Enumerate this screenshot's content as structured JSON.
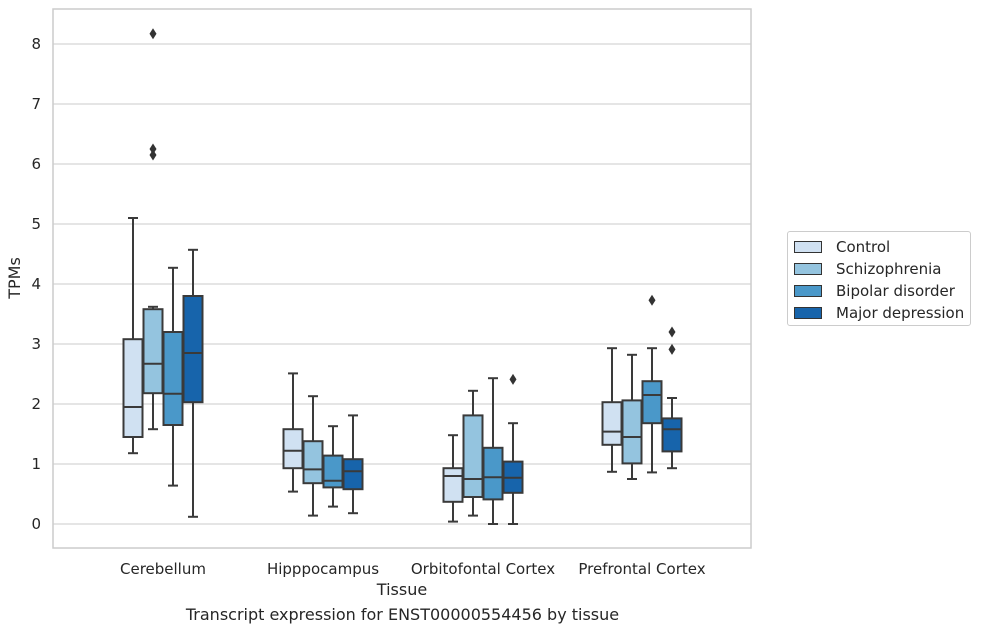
{
  "chart_data": {
    "type": "box",
    "caption": "Transcript expression for ENST00000554456 by tissue",
    "xlabel": "Tissue",
    "ylabel": "TPMs",
    "ylim": [
      -0.4,
      8.6
    ],
    "yticks": [
      0,
      1,
      2,
      3,
      4,
      5,
      6,
      7,
      8
    ],
    "grid": true,
    "legend_position": "right",
    "categories": [
      "Cerebellum",
      "Hipppocampus",
      "Orbitofontal Cortex",
      "Prefrontal Cortex"
    ],
    "series": [
      {
        "name": "Control",
        "color": "#d0e1f2",
        "boxes": [
          {
            "whislo": 1.18,
            "q1": 1.45,
            "med": 1.95,
            "q3": 3.08,
            "whishi": 5.1,
            "fliers": []
          },
          {
            "whislo": 0.54,
            "q1": 0.93,
            "med": 1.22,
            "q3": 1.58,
            "whishi": 2.51,
            "fliers": []
          },
          {
            "whislo": 0.04,
            "q1": 0.37,
            "med": 0.8,
            "q3": 0.93,
            "whishi": 1.48,
            "fliers": []
          },
          {
            "whislo": 0.87,
            "q1": 1.32,
            "med": 1.54,
            "q3": 2.03,
            "whishi": 2.93,
            "fliers": []
          }
        ]
      },
      {
        "name": "Schizophrenia",
        "color": "#94c4df",
        "boxes": [
          {
            "whislo": 1.58,
            "q1": 2.18,
            "med": 2.67,
            "q3": 3.58,
            "whishi": 3.62,
            "fliers": [
              6.15,
              6.25,
              8.17
            ]
          },
          {
            "whislo": 0.14,
            "q1": 0.68,
            "med": 0.91,
            "q3": 1.38,
            "whishi": 2.13,
            "fliers": []
          },
          {
            "whislo": 0.14,
            "q1": 0.45,
            "med": 0.75,
            "q3": 1.81,
            "whishi": 2.22,
            "fliers": []
          },
          {
            "whislo": 0.75,
            "q1": 1.01,
            "med": 1.45,
            "q3": 2.06,
            "whishi": 2.82,
            "fliers": []
          }
        ]
      },
      {
        "name": "Bipolar disorder",
        "color": "#4a98c9",
        "boxes": [
          {
            "whislo": 0.64,
            "q1": 1.65,
            "med": 2.17,
            "q3": 3.2,
            "whishi": 4.27,
            "fliers": []
          },
          {
            "whislo": 0.29,
            "q1": 0.61,
            "med": 0.72,
            "q3": 1.14,
            "whishi": 1.63,
            "fliers": []
          },
          {
            "whislo": 0.0,
            "q1": 0.41,
            "med": 0.78,
            "q3": 1.27,
            "whishi": 2.43,
            "fliers": []
          },
          {
            "whislo": 0.86,
            "q1": 1.68,
            "med": 2.15,
            "q3": 2.38,
            "whishi": 2.93,
            "fliers": [
              3.73
            ]
          }
        ]
      },
      {
        "name": "Major depression",
        "color": "#1764ab",
        "boxes": [
          {
            "whislo": 0.12,
            "q1": 2.03,
            "med": 2.85,
            "q3": 3.8,
            "whishi": 4.57,
            "fliers": []
          },
          {
            "whislo": 0.18,
            "q1": 0.58,
            "med": 0.88,
            "q3": 1.08,
            "whishi": 1.81,
            "fliers": []
          },
          {
            "whislo": 0.0,
            "q1": 0.52,
            "med": 0.77,
            "q3": 1.04,
            "whishi": 1.68,
            "fliers": [
              2.41
            ]
          },
          {
            "whislo": 0.93,
            "q1": 1.21,
            "med": 1.58,
            "q3": 1.76,
            "whishi": 2.1,
            "fliers": [
              2.91,
              3.2
            ]
          }
        ]
      }
    ]
  }
}
